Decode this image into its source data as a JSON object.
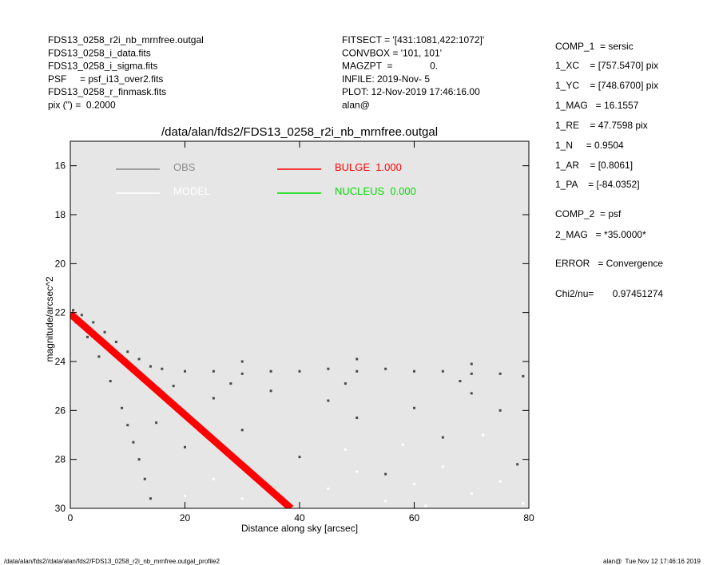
{
  "chart_data": {
    "type": "scatter",
    "title": "/data/alan/fds2/FDS13_0258_r2i_nb_mrnfree.outgal",
    "x_label": "Distance along sky [arcsec]",
    "y_label": "magnitude/arcsec^2",
    "xlim": [
      0,
      80
    ],
    "xticks": [
      0,
      20,
      40,
      60,
      80
    ],
    "ylim": [
      30,
      15
    ],
    "yticks": [
      16,
      18,
      20,
      22,
      24,
      26,
      28,
      30
    ],
    "background": "#e6e6e6",
    "header_left": [
      "FDS13_0258_r2i_nb_mrnfree.outgal",
      "FDS13_0258_i_data.fits",
      "FDS13_0258_i_sigma.fits",
      "PSF     = psf_i13_over2.fits",
      "FDS13_0258_r_finmask.fits",
      "pix (\") =  0.2000"
    ],
    "header_middle": [
      "FITSECT = '[431:1081,422:1072]'",
      "CONVBOX = '101, 101'",
      "MAGZPT  =              0.",
      "INFILE: 2019-Nov- 5",
      "PLOT: 12-Nov-2019 17:46:16.00",
      "alan@"
    ],
    "params": [
      "COMP_1  = sersic",
      "1_XC    = [757.5470] pix",
      "1_YC    = [748.6700] pix",
      "1_MAG   = 16.1557",
      "1_RE    = 47.7598 pix",
      "1_N     = 0.9504",
      "1_AR    = [0.8061]",
      "1_PA    = [-84.0352]",
      "COMP_2  = psf",
      "2_MAG   = *35.0000*",
      "ERROR   = Convergence",
      "Chi2/nu=       0.97451274"
    ],
    "footer_left": "/data/alan/fds2//data/alan/fds2/FDS13_0258_r2i_nb_mrnfree.outgal_profile2",
    "footer_right": "alan@  Tue Nov 12 17:46:16 2019",
    "series": [
      {
        "name": "OBS",
        "color": "#4a4a4a",
        "legend_color": "#8c8c8c",
        "kind": "points",
        "x": [
          0.5,
          2,
          4,
          6,
          8,
          10,
          12,
          14,
          16,
          20,
          25,
          30,
          35,
          40,
          45,
          50,
          55,
          60,
          65,
          70,
          75,
          79,
          1,
          3,
          5,
          7,
          9,
          10,
          11,
          12,
          13,
          14,
          15,
          20,
          25,
          30,
          35,
          40,
          45,
          50,
          55,
          60,
          65,
          70,
          75,
          78,
          18,
          28,
          48,
          68,
          30,
          50,
          70
        ],
        "values": [
          21.9,
          22.1,
          22.4,
          22.8,
          23.2,
          23.6,
          23.9,
          24.2,
          24.3,
          24.4,
          24.4,
          24.5,
          24.4,
          24.4,
          24.3,
          24.4,
          24.3,
          24.4,
          24.4,
          24.5,
          24.5,
          24.6,
          22.4,
          23.0,
          23.8,
          24.8,
          25.9,
          26.6,
          27.3,
          28.0,
          28.8,
          29.6,
          26.5,
          27.5,
          25.5,
          26.8,
          25.2,
          27.9,
          25.6,
          26.3,
          28.6,
          25.9,
          27.1,
          25.3,
          26.0,
          28.2,
          25.0,
          24.9,
          24.9,
          24.8,
          24.0,
          23.9,
          24.1
        ]
      },
      {
        "name": "MODEL",
        "color": "#ffffff",
        "legend_color": "#ffffff",
        "kind": "points",
        "x": [
          20,
          25,
          30,
          45,
          50,
          55,
          60,
          65,
          70,
          75,
          58,
          72,
          48,
          79,
          62
        ],
        "values": [
          29.5,
          28.8,
          29.6,
          29.2,
          28.5,
          29.7,
          29.0,
          28.3,
          29.4,
          28.9,
          27.4,
          27.0,
          27.6,
          29.8,
          29.9
        ]
      },
      {
        "name": "BULGE  1.000",
        "color": "#ff0000",
        "legend_color": "#ff0000",
        "kind": "line",
        "x": [
          0,
          38.5
        ],
        "values": [
          22.05,
          30
        ]
      },
      {
        "name": "NUCLEUS  0.000",
        "color": "#00cc00",
        "legend_color": "#00dd00",
        "kind": "line",
        "x": [],
        "values": []
      }
    ]
  }
}
